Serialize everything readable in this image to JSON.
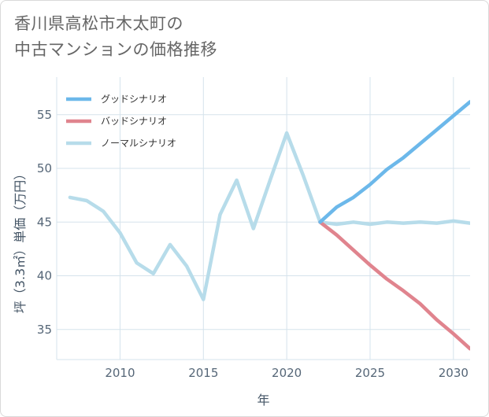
{
  "title_lines": [
    "香川県高松市木太町の",
    "中古マンションの価格推移"
  ],
  "colors": {
    "good": "#6cb8ea",
    "bad": "#e0848e",
    "normal": "#b7dcea",
    "grid": "#d5e3ec",
    "plot_bg": "#ffffff"
  },
  "chart_data": {
    "type": "line",
    "title": "香川県高松市木太町の中古マンションの価格推移",
    "xlabel": "年",
    "ylabel": "坪（3.3㎡）単価（万円）",
    "xlim": [
      2006.2,
      2031
    ],
    "ylim": [
      32.2,
      58.5
    ],
    "xticks": [
      2010,
      2015,
      2020,
      2025,
      2030
    ],
    "xtick_labels": [
      "2010",
      "2015",
      "2020",
      "2025",
      "2030"
    ],
    "yticks": [
      35,
      40,
      45,
      50,
      55
    ],
    "ytick_labels": [
      "35",
      "40",
      "45",
      "50",
      "55"
    ],
    "legend_position": "top-left",
    "series": [
      {
        "name": "グッドシナリオ",
        "color_key": "good",
        "x": [
          2022,
          2023,
          2024,
          2025,
          2026,
          2027,
          2028,
          2029,
          2030,
          2031
        ],
        "y": [
          45.0,
          46.4,
          47.3,
          48.5,
          49.9,
          51.0,
          52.3,
          53.6,
          54.9,
          56.2
        ]
      },
      {
        "name": "バッドシナリオ",
        "color_key": "bad",
        "x": [
          2022,
          2023,
          2024,
          2025,
          2026,
          2027,
          2028,
          2029,
          2030,
          2031
        ],
        "y": [
          45.0,
          43.8,
          42.4,
          41.0,
          39.7,
          38.6,
          37.4,
          35.9,
          34.6,
          33.2
        ]
      },
      {
        "name": "ノーマルシナリオ",
        "color_key": "normal",
        "x": [
          2007,
          2008,
          2009,
          2010,
          2011,
          2012,
          2013,
          2014,
          2015,
          2016,
          2017,
          2018,
          2019,
          2020,
          2021,
          2022,
          2023,
          2024,
          2025,
          2026,
          2027,
          2028,
          2029,
          2030,
          2031
        ],
        "y": [
          47.3,
          47.0,
          46.0,
          44.0,
          41.2,
          40.2,
          42.9,
          40.9,
          37.8,
          45.7,
          48.9,
          44.4,
          48.9,
          53.3,
          49.3,
          45.0,
          44.8,
          45.0,
          44.8,
          45.0,
          44.9,
          45.0,
          44.9,
          45.1,
          44.9
        ]
      }
    ]
  }
}
